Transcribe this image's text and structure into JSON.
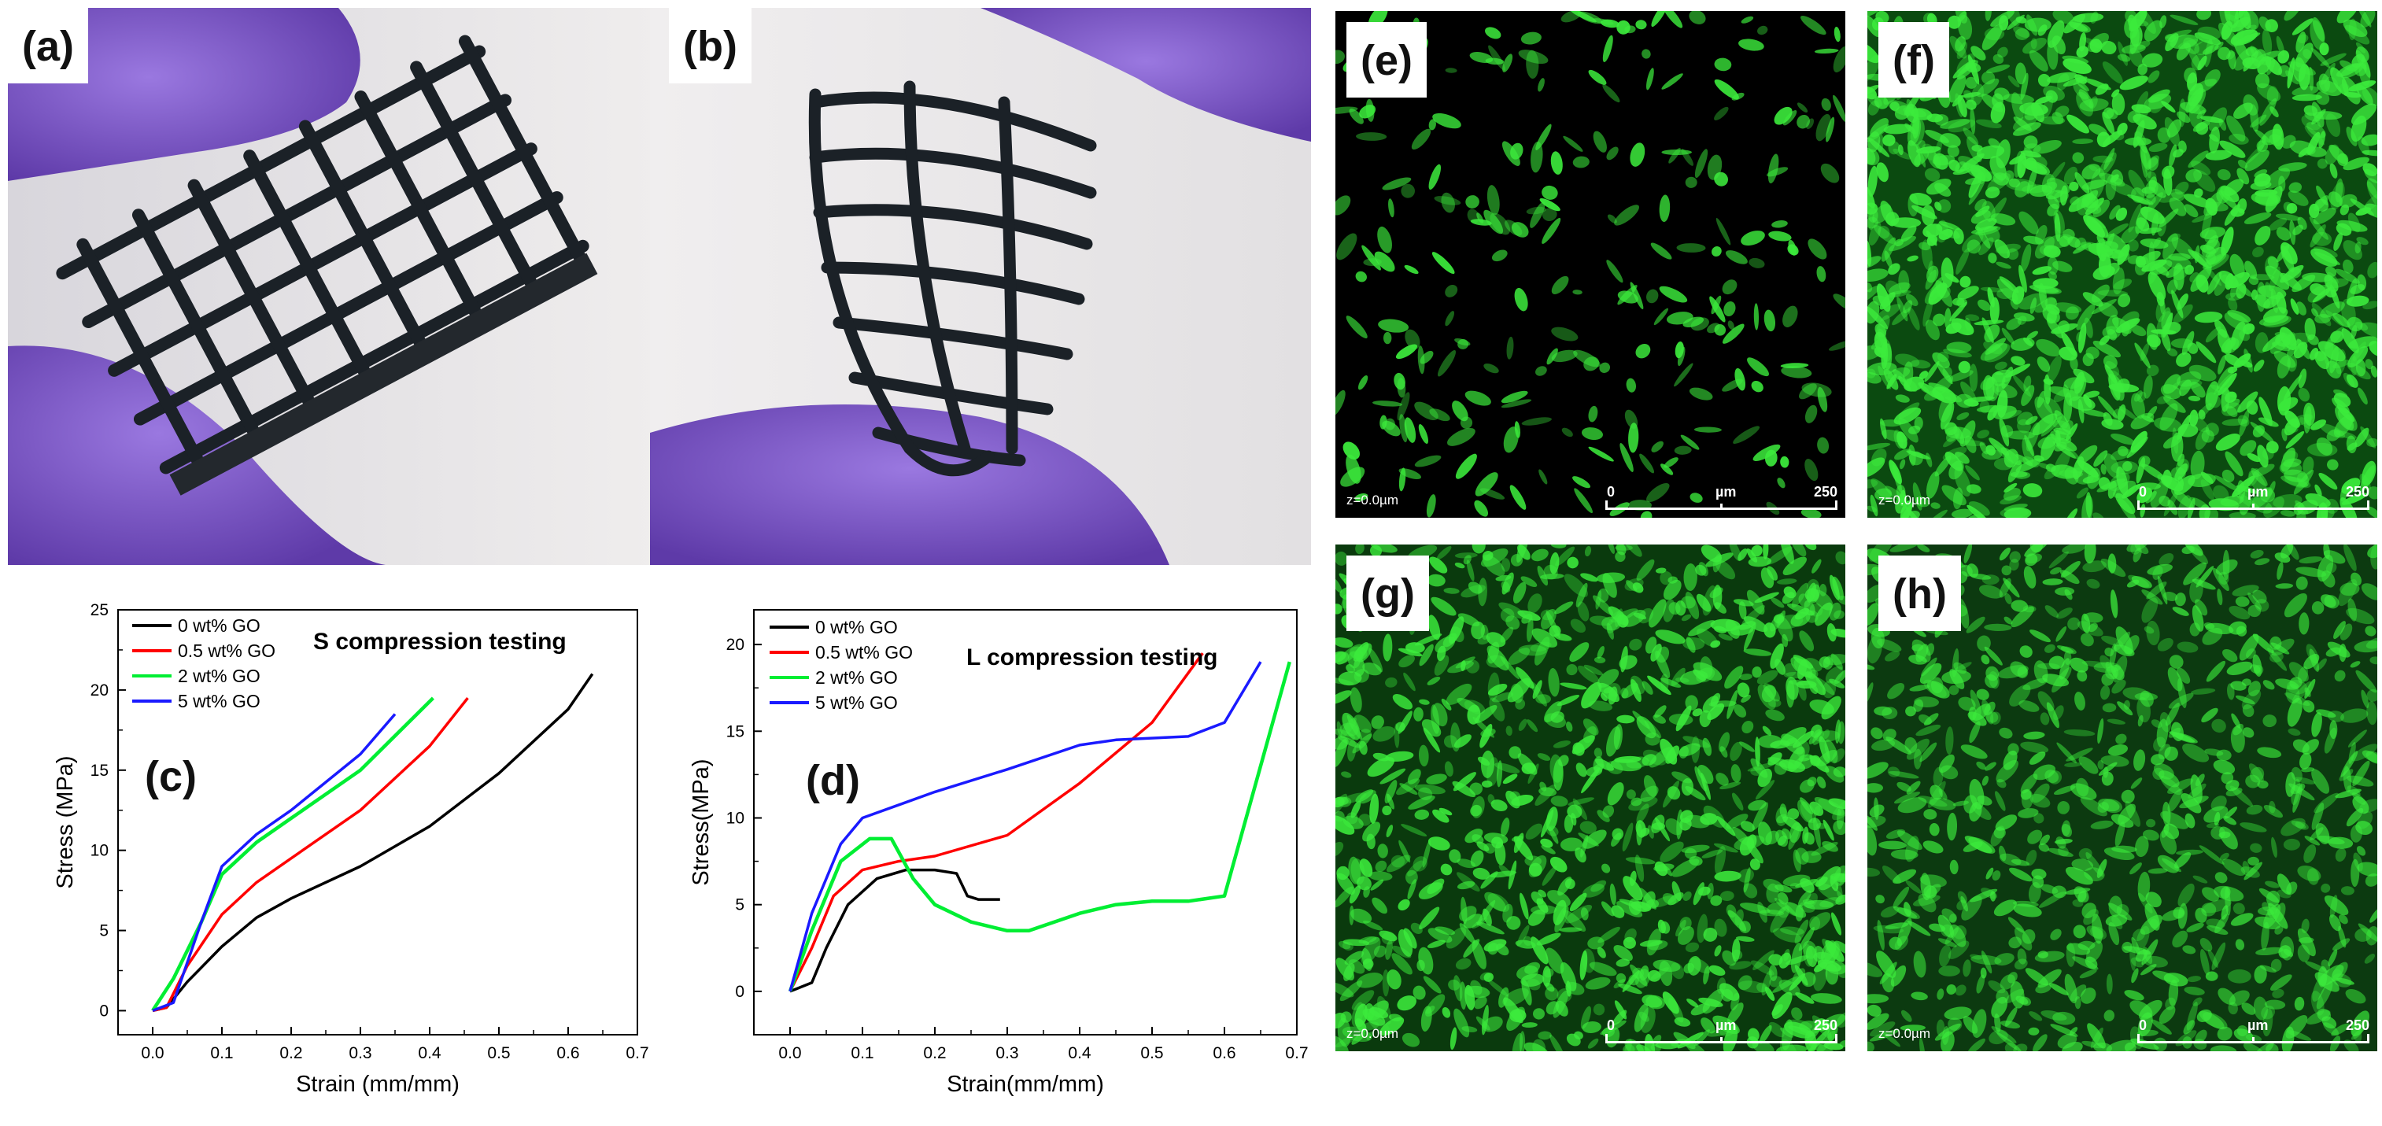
{
  "panels": {
    "a": {
      "label": "(a)"
    },
    "b": {
      "label": "(b)"
    },
    "c": {
      "label": "(c)"
    },
    "d": {
      "label": "(d)"
    },
    "e": {
      "label": "(e)"
    },
    "f": {
      "label": "(f)"
    },
    "g": {
      "label": "(g)"
    },
    "h": {
      "label": "(h)"
    }
  },
  "micrograph": {
    "z_label": "z=0.0µm",
    "scale_start": "0",
    "scale_unit": "µm",
    "scale_end": "250"
  },
  "colors": {
    "glove": "#7b57c8",
    "scaffold": "#1a1f24",
    "cells": "#39e83a",
    "series": [
      "#000000",
      "#ff0000",
      "#00ee33",
      "#1a1aff"
    ]
  },
  "chart_data": [
    {
      "panel": "c",
      "type": "line",
      "title": "S compression testing",
      "xlabel": "Strain (mm/mm)",
      "ylabel": "Stress (MPa)",
      "xlim": [
        -0.05,
        0.7
      ],
      "ylim": [
        -1.5,
        25
      ],
      "xticks": [
        "0.0",
        "0.1",
        "0.2",
        "0.3",
        "0.4",
        "0.5",
        "0.6",
        "0.7"
      ],
      "yticks": [
        "0",
        "5",
        "10",
        "15",
        "20",
        "25"
      ],
      "legend": "top-left",
      "series": [
        {
          "name": "0 wt% GO",
          "x": [
            0.0,
            0.02,
            0.05,
            0.1,
            0.15,
            0.2,
            0.3,
            0.4,
            0.5,
            0.6,
            0.635
          ],
          "y": [
            0,
            0.2,
            1.8,
            4.0,
            5.8,
            7.0,
            9.0,
            11.5,
            14.8,
            18.8,
            21.0
          ]
        },
        {
          "name": "0.5 wt% GO",
          "x": [
            0.0,
            0.02,
            0.05,
            0.1,
            0.15,
            0.2,
            0.3,
            0.4,
            0.455
          ],
          "y": [
            0,
            0.2,
            2.8,
            6.0,
            8.0,
            9.5,
            12.5,
            16.5,
            19.5
          ]
        },
        {
          "name": "2 wt% GO",
          "x": [
            0.0,
            0.03,
            0.07,
            0.1,
            0.15,
            0.2,
            0.3,
            0.405
          ],
          "y": [
            0,
            2.0,
            5.5,
            8.5,
            10.5,
            12.0,
            15.0,
            19.5
          ]
        },
        {
          "name": "5 wt% GO",
          "x": [
            0.0,
            0.03,
            0.07,
            0.1,
            0.15,
            0.2,
            0.3,
            0.35
          ],
          "y": [
            0,
            0.5,
            5.5,
            9.0,
            11.0,
            12.5,
            16.0,
            18.5
          ]
        }
      ]
    },
    {
      "panel": "d",
      "type": "line",
      "title": "L compression testing",
      "xlabel": "Strain(mm/mm)",
      "ylabel": "Stress(MPa)",
      "xlim": [
        -0.05,
        0.7
      ],
      "ylim": [
        -2.5,
        22
      ],
      "xticks": [
        "0.0",
        "0.1",
        "0.2",
        "0.3",
        "0.4",
        "0.5",
        "0.6",
        "0.7"
      ],
      "yticks": [
        "0",
        "5",
        "10",
        "15",
        "20"
      ],
      "legend": "top-left",
      "series": [
        {
          "name": "0 wt% GO",
          "x": [
            0.0,
            0.03,
            0.05,
            0.08,
            0.12,
            0.16,
            0.2,
            0.23,
            0.245,
            0.26,
            0.29
          ],
          "y": [
            0,
            0.5,
            2.5,
            5.0,
            6.5,
            7.0,
            7.0,
            6.8,
            5.5,
            5.3,
            5.3
          ]
        },
        {
          "name": "0.5 wt% GO",
          "x": [
            0.0,
            0.03,
            0.06,
            0.1,
            0.15,
            0.2,
            0.3,
            0.4,
            0.5,
            0.57
          ],
          "y": [
            0,
            2.5,
            5.5,
            7.0,
            7.5,
            7.8,
            9.0,
            12.0,
            15.5,
            19.5
          ]
        },
        {
          "name": "2 wt% GO",
          "x": [
            0.0,
            0.03,
            0.07,
            0.11,
            0.14,
            0.17,
            0.2,
            0.25,
            0.3,
            0.33,
            0.4,
            0.45,
            0.5,
            0.55,
            0.6,
            0.63,
            0.69
          ],
          "y": [
            0,
            3.5,
            7.5,
            8.8,
            8.8,
            6.5,
            5.0,
            4.0,
            3.5,
            3.5,
            4.5,
            5.0,
            5.2,
            5.2,
            5.5,
            10.0,
            19.0
          ]
        },
        {
          "name": "5 wt% GO",
          "x": [
            0.0,
            0.03,
            0.07,
            0.1,
            0.2,
            0.3,
            0.4,
            0.45,
            0.55,
            0.6,
            0.65
          ],
          "y": [
            0,
            4.5,
            8.5,
            10.0,
            11.5,
            12.8,
            14.2,
            14.5,
            14.7,
            15.5,
            19.0
          ]
        }
      ]
    }
  ]
}
